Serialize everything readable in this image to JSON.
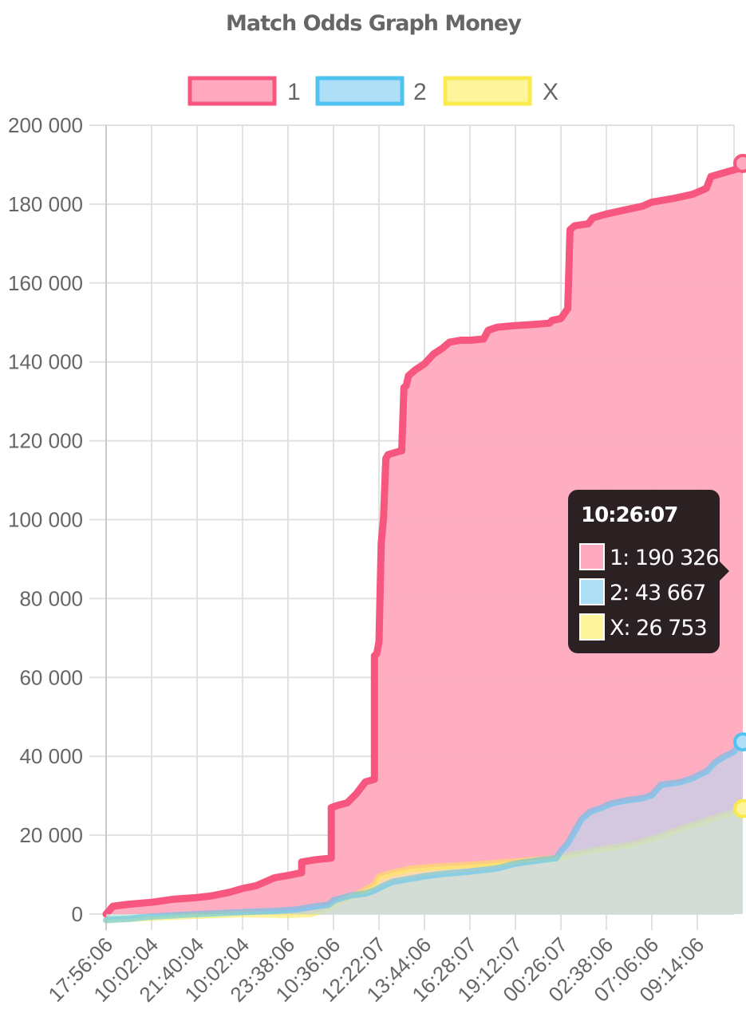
{
  "chart_data": {
    "type": "area",
    "title": "Match Odds Graph Money",
    "legend_position": "top",
    "grid": true,
    "ylim": [
      0,
      200000
    ],
    "yticks": [
      "200 000",
      "180 000",
      "160 000",
      "140 000",
      "120 000",
      "100 000",
      "80 000",
      "60 000",
      "40 000",
      "20 000",
      "0"
    ],
    "xticks": [
      "17:56:06",
      "10:02:04",
      "21:40:04",
      "10:02:04",
      "23:38:06",
      "10:36:06",
      "12:22:07",
      "13:44:06",
      "16:28:07",
      "19:12:07",
      "00:26:07",
      "02:38:06",
      "07:06:06",
      "09:14:06"
    ],
    "x_range": [
      0,
      14
    ],
    "series": [
      {
        "name": "1",
        "border_color": "#f7577e",
        "fill_color": "#ffaabf",
        "points": [
          [
            0,
            0
          ],
          [
            0.15,
            2000
          ],
          [
            0.5,
            2500
          ],
          [
            1.0,
            3000
          ],
          [
            1.5,
            3800
          ],
          [
            2.0,
            4200
          ],
          [
            2.3,
            4600
          ],
          [
            2.7,
            5500
          ],
          [
            3.0,
            6500
          ],
          [
            3.3,
            7200
          ],
          [
            3.5,
            8200
          ],
          [
            3.7,
            9200
          ],
          [
            4.0,
            9800
          ],
          [
            4.3,
            10500
          ],
          [
            4.3,
            13200
          ],
          [
            4.6,
            13800
          ],
          [
            4.95,
            14200
          ],
          [
            4.95,
            27000
          ],
          [
            5.1,
            27600
          ],
          [
            5.3,
            28200
          ],
          [
            5.5,
            30500
          ],
          [
            5.6,
            32000
          ],
          [
            5.7,
            33500
          ],
          [
            5.9,
            34200
          ],
          [
            5.9,
            65500
          ],
          [
            5.95,
            66000
          ],
          [
            6.0,
            69000
          ],
          [
            6.05,
            94000
          ],
          [
            6.1,
            100500
          ],
          [
            6.15,
            115500
          ],
          [
            6.2,
            116500
          ],
          [
            6.35,
            117000
          ],
          [
            6.5,
            117500
          ],
          [
            6.55,
            133500
          ],
          [
            6.6,
            134000
          ],
          [
            6.65,
            136500
          ],
          [
            6.8,
            138000
          ],
          [
            7.0,
            139500
          ],
          [
            7.2,
            142000
          ],
          [
            7.4,
            143500
          ],
          [
            7.55,
            145000
          ],
          [
            7.8,
            145500
          ],
          [
            8.0,
            145500
          ],
          [
            8.3,
            145800
          ],
          [
            8.4,
            148000
          ],
          [
            8.6,
            148800
          ],
          [
            9.0,
            149200
          ],
          [
            9.4,
            149500
          ],
          [
            9.75,
            149800
          ],
          [
            9.8,
            150500
          ],
          [
            10.0,
            151000
          ],
          [
            10.15,
            153500
          ],
          [
            10.2,
            173500
          ],
          [
            10.3,
            174500
          ],
          [
            10.6,
            175000
          ],
          [
            10.7,
            176500
          ],
          [
            11.0,
            177500
          ],
          [
            11.4,
            178500
          ],
          [
            11.8,
            179500
          ],
          [
            12.0,
            180500
          ],
          [
            12.5,
            181500
          ],
          [
            12.9,
            182500
          ],
          [
            13.1,
            183500
          ],
          [
            13.2,
            184000
          ],
          [
            13.3,
            187000
          ],
          [
            13.6,
            188000
          ],
          [
            13.9,
            189000
          ],
          [
            14.0,
            190326
          ]
        ],
        "tooltip_value": "1: 190 326"
      },
      {
        "name": "2",
        "border_color": "#4fc3f0",
        "fill_color": "#aedff7",
        "points": [
          [
            0,
            -1500
          ],
          [
            0.5,
            -1200
          ],
          [
            1.0,
            -600
          ],
          [
            2.0,
            0
          ],
          [
            3.0,
            500
          ],
          [
            3.7,
            800
          ],
          [
            4.2,
            1200
          ],
          [
            4.5,
            1800
          ],
          [
            4.9,
            2400
          ],
          [
            5.0,
            3500
          ],
          [
            5.4,
            4800
          ],
          [
            5.7,
            5200
          ],
          [
            5.9,
            6000
          ],
          [
            6.1,
            7200
          ],
          [
            6.3,
            8200
          ],
          [
            6.6,
            8800
          ],
          [
            7.0,
            9600
          ],
          [
            7.4,
            10200
          ],
          [
            8.0,
            10800
          ],
          [
            8.6,
            11600
          ],
          [
            9.0,
            12800
          ],
          [
            9.5,
            13600
          ],
          [
            9.9,
            14200
          ],
          [
            10.0,
            16000
          ],
          [
            10.15,
            18000
          ],
          [
            10.3,
            21000
          ],
          [
            10.45,
            24000
          ],
          [
            10.65,
            26000
          ],
          [
            10.9,
            27000
          ],
          [
            11.1,
            28000
          ],
          [
            11.4,
            28800
          ],
          [
            11.8,
            29400
          ],
          [
            12.0,
            30200
          ],
          [
            12.2,
            32800
          ],
          [
            12.6,
            33400
          ],
          [
            12.9,
            34500
          ],
          [
            13.2,
            36200
          ],
          [
            13.4,
            38600
          ],
          [
            13.6,
            40000
          ],
          [
            13.8,
            41200
          ],
          [
            14.0,
            43667
          ]
        ],
        "tooltip_value": "2: 43 667"
      },
      {
        "name": "X",
        "border_color": "#fbea4e",
        "fill_color": "#fdf59c",
        "points": [
          [
            0,
            -1500
          ],
          [
            1.0,
            -900
          ],
          [
            2.0,
            -400
          ],
          [
            3.0,
            0
          ],
          [
            4.0,
            -200
          ],
          [
            4.5,
            0
          ],
          [
            4.9,
            1500
          ],
          [
            5.2,
            3500
          ],
          [
            5.6,
            5500
          ],
          [
            5.9,
            7500
          ],
          [
            6.0,
            9500
          ],
          [
            6.3,
            10500
          ],
          [
            6.7,
            11500
          ],
          [
            7.2,
            12000
          ],
          [
            8.0,
            12500
          ],
          [
            8.6,
            13000
          ],
          [
            9.2,
            13500
          ],
          [
            9.9,
            14200
          ],
          [
            10.4,
            15500
          ],
          [
            10.9,
            16500
          ],
          [
            11.5,
            17500
          ],
          [
            12.0,
            19000
          ],
          [
            12.6,
            21500
          ],
          [
            13.0,
            23000
          ],
          [
            13.4,
            24500
          ],
          [
            13.8,
            25800
          ],
          [
            14.0,
            26753
          ]
        ],
        "tooltip_value": "X: 26 753"
      }
    ],
    "tooltip": {
      "title": "10:26:07"
    }
  }
}
